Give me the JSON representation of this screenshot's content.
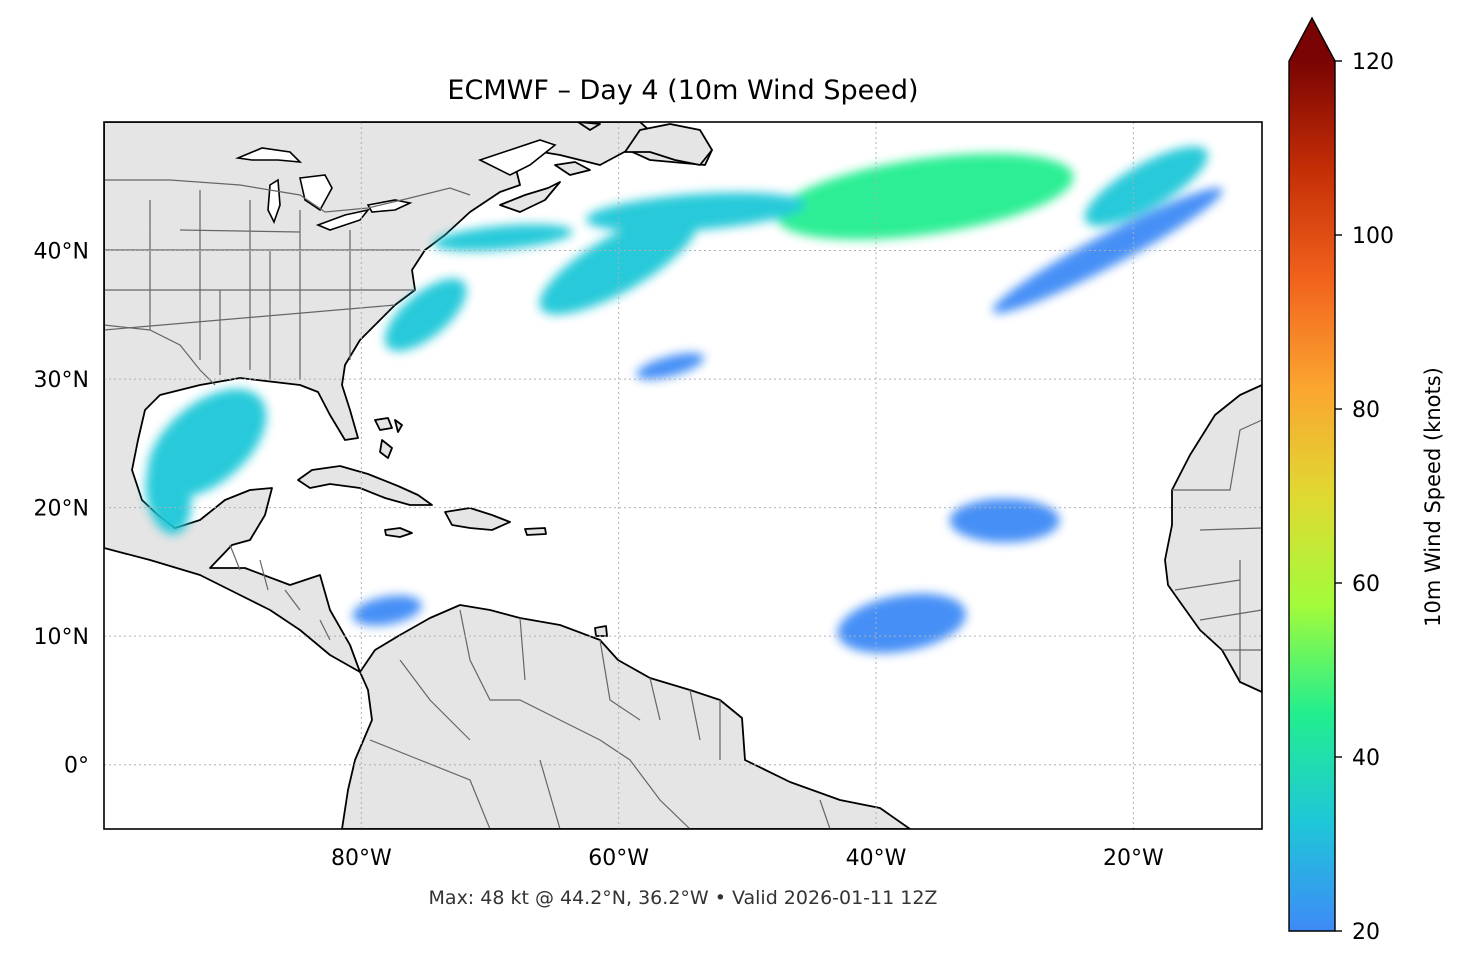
{
  "title": "ECMWF – Day 4 (10m Wind Speed)",
  "footer": "Max: 48 kt @ 44.2°N, 36.2°W • Valid 2026-01-11 12Z",
  "map": {
    "lon_range": [
      -100,
      -10
    ],
    "lat_range": [
      -5,
      50
    ],
    "x_ticks": [
      {
        "lon": -80,
        "label": "80°W"
      },
      {
        "lon": -60,
        "label": "60°W"
      },
      {
        "lon": -40,
        "label": "40°W"
      },
      {
        "lon": -20,
        "label": "20°W"
      }
    ],
    "y_ticks": [
      {
        "lat": 40,
        "label": "40°N"
      },
      {
        "lat": 30,
        "label": "30°N"
      },
      {
        "lat": 20,
        "label": "20°N"
      },
      {
        "lat": 10,
        "label": "10°N"
      },
      {
        "lat": 0,
        "label": "0°"
      }
    ],
    "land_color": "#e5e5e5",
    "ocean_color": "#ffffff",
    "gridlines": true
  },
  "colorbar": {
    "label": "10m Wind Speed (knots)",
    "range": [
      20,
      120
    ],
    "extend": "max",
    "ticks": [
      {
        "value": 20,
        "label": "20"
      },
      {
        "value": 40,
        "label": "40"
      },
      {
        "value": 60,
        "label": "60"
      },
      {
        "value": 80,
        "label": "80"
      },
      {
        "value": 100,
        "label": "100"
      },
      {
        "value": 120,
        "label": "120"
      }
    ],
    "colors": [
      "#3e8af6",
      "#1fc7d8",
      "#22ee8f",
      "#a3fb3a",
      "#e0d932",
      "#fba530",
      "#f1621c",
      "#c42e06",
      "#7a0403"
    ]
  },
  "chart_data": {
    "type": "heatmap",
    "title": "ECMWF – Day 4 (10m Wind Speed)",
    "max": {
      "value": 48,
      "lat": 44.2,
      "lon": -36.2
    },
    "valid": "2026-01-11 12Z",
    "regions": [
      {
        "lon": -36.2,
        "lat": 44.2,
        "speed": 48
      },
      {
        "lon": -54,
        "lat": 43,
        "speed": 28
      },
      {
        "lon": -60,
        "lat": 39,
        "speed": 30
      },
      {
        "lon": -69,
        "lat": 41,
        "speed": 32
      },
      {
        "lon": -75,
        "lat": 35,
        "speed": 27
      },
      {
        "lon": -22,
        "lat": 40,
        "speed": 26
      },
      {
        "lon": -19,
        "lat": 45,
        "speed": 30
      },
      {
        "lon": -92,
        "lat": 25,
        "speed": 27
      },
      {
        "lon": -95,
        "lat": 21,
        "speed": 30
      },
      {
        "lon": -78,
        "lat": 12,
        "speed": 26
      },
      {
        "lon": -30,
        "lat": 19,
        "speed": 25
      },
      {
        "lon": -38,
        "lat": 11,
        "speed": 25
      },
      {
        "lon": -56,
        "lat": 31,
        "speed": 25
      }
    ]
  }
}
